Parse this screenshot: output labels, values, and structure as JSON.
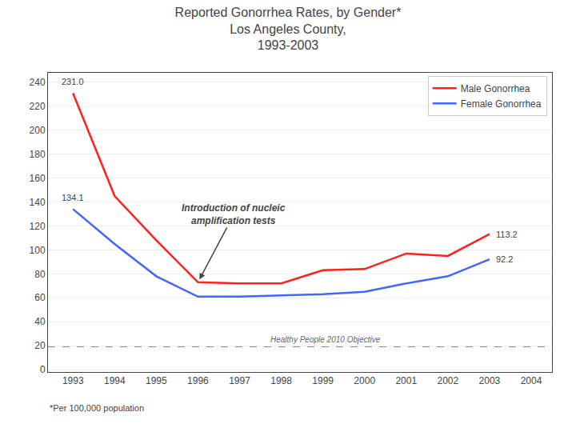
{
  "chart_data": {
    "type": "line",
    "title": "Reported Gonorrhea Rates, by Gender*\nLos Angeles County,\n1993-2003",
    "x": [
      1993,
      1994,
      1995,
      1996,
      1997,
      1998,
      1999,
      2000,
      2001,
      2002,
      2003
    ],
    "series": [
      {
        "name": "Male Gonorrhea",
        "color": "#FF2020",
        "values": [
          231.0,
          145.0,
          108.0,
          73.0,
          72.0,
          72.0,
          83.0,
          84.0,
          97.0,
          95.0,
          113.2
        ],
        "value_labels": [
          "231.0",
          null,
          null,
          null,
          null,
          null,
          null,
          null,
          null,
          null,
          "113.2"
        ]
      },
      {
        "name": "Female Gonorrhea",
        "color": "#4466FF",
        "values": [
          134.1,
          105.0,
          78.0,
          61.0,
          61.0,
          62.0,
          63.0,
          65.0,
          72.0,
          78.0,
          92.2
        ],
        "value_labels": [
          "134.1",
          null,
          null,
          null,
          null,
          null,
          null,
          null,
          null,
          null,
          "92.2"
        ]
      }
    ],
    "data_labels": true,
    "annotations": [
      {
        "text": "Introduction of nucleic\namplification tests",
        "x": 1996,
        "y": 73.0
      },
      {
        "text": "Healthy People 2010 Objective",
        "y": 19.0,
        "line_style": "dashed"
      }
    ],
    "footnote": "*Per 100,000 population",
    "xlim": [
      1992.4,
      2004.5
    ],
    "xticks": [
      1993,
      1994,
      1995,
      1996,
      1997,
      1998,
      1999,
      2000,
      2001,
      2002,
      2003,
      2004
    ],
    "ylim": [
      -2,
      248
    ],
    "yticks": [
      0,
      20,
      40,
      60,
      80,
      100,
      120,
      140,
      160,
      180,
      200,
      220,
      240
    ],
    "grid": true,
    "legend": "upper right"
  }
}
